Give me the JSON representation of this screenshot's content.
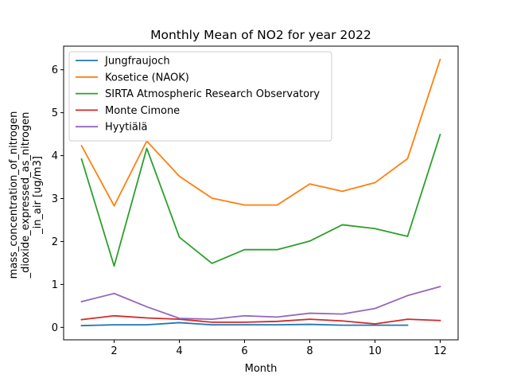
{
  "chart_data": {
    "type": "line",
    "title": "Monthly Mean of NO2 for year 2022",
    "xlabel": "Month",
    "ylabel_lines": [
      "mass_concentration_of_nitrogen",
      "_dioxide_expressed_as_nitrogen",
      "_in_air [ug/m3]"
    ],
    "xlim": [
      0.45,
      12.55
    ],
    "ylim": [
      -0.29,
      6.55
    ],
    "xticks": [
      2,
      4,
      6,
      8,
      10,
      12
    ],
    "yticks": [
      0,
      1,
      2,
      3,
      4,
      5,
      6
    ],
    "grid": false,
    "legend_position": "top-left",
    "series": [
      {
        "name": "Jungfraujoch",
        "color": "#1f77b4",
        "x": [
          1,
          2,
          3,
          4,
          5,
          6,
          7,
          8,
          9,
          10,
          11
        ],
        "y": [
          0.04,
          0.06,
          0.06,
          0.11,
          0.06,
          0.06,
          0.06,
          0.07,
          0.05,
          0.05,
          0.05
        ]
      },
      {
        "name": "Kosetice (NAOK)",
        "color": "#ff7f0e",
        "x": [
          1,
          2,
          3,
          4,
          5,
          6,
          7,
          8,
          9,
          10,
          11,
          12
        ],
        "y": [
          4.23,
          2.83,
          4.34,
          3.52,
          3.01,
          2.85,
          2.85,
          3.34,
          3.17,
          3.37,
          3.93,
          6.24
        ]
      },
      {
        "name": "SIRTA Atmospheric Research Observatory",
        "color": "#2ca02c",
        "x": [
          1,
          2,
          3,
          4,
          5,
          6,
          7,
          8,
          9,
          10,
          11,
          12
        ],
        "y": [
          3.92,
          1.43,
          4.17,
          2.1,
          1.49,
          1.81,
          1.81,
          2.01,
          2.39,
          2.3,
          2.12,
          4.49
        ]
      },
      {
        "name": "Monte Cimone",
        "color": "#d62728",
        "x": [
          1,
          2,
          3,
          4,
          5,
          6,
          7,
          8,
          9,
          10,
          11,
          12
        ],
        "y": [
          0.18,
          0.27,
          0.22,
          0.19,
          0.12,
          0.12,
          0.14,
          0.19,
          0.15,
          0.08,
          0.19,
          0.16
        ]
      },
      {
        "name": "Hyytiälä",
        "color": "#9467bd",
        "x": [
          1,
          2,
          3,
          4,
          5,
          6,
          7,
          8,
          9,
          10,
          11,
          12
        ],
        "y": [
          0.6,
          0.79,
          0.48,
          0.21,
          0.19,
          0.27,
          0.24,
          0.33,
          0.31,
          0.44,
          0.74,
          0.95
        ]
      }
    ]
  }
}
